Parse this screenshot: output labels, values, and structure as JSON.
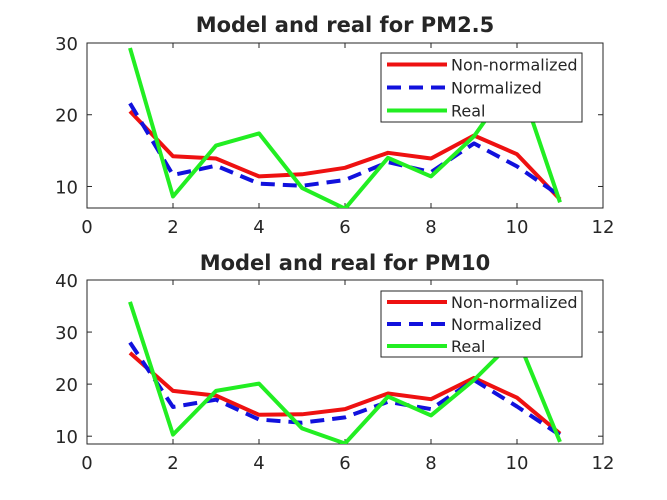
{
  "chart_data": [
    {
      "type": "line",
      "title": "Model and real for PM2.5",
      "xlabel": "",
      "ylabel": "",
      "xlim": [
        0,
        12
      ],
      "ylim": [
        7,
        30
      ],
      "xticks": [
        0,
        2,
        4,
        6,
        8,
        10,
        12
      ],
      "yticks": [
        10,
        20,
        30
      ],
      "x": [
        1,
        2,
        3,
        4,
        5,
        6,
        7,
        8,
        9,
        10,
        11
      ],
      "legend": "top-right",
      "grid": false,
      "series": [
        {
          "name": "Non-normalized",
          "color": "#ee1111",
          "dash": "solid",
          "values": [
            20.5,
            14.2,
            13.9,
            11.4,
            11.7,
            12.6,
            14.7,
            13.9,
            17.1,
            14.5,
            8.2
          ]
        },
        {
          "name": "Normalized",
          "color": "#1111dd",
          "dash": "dashed",
          "values": [
            21.6,
            11.6,
            12.9,
            10.4,
            10.1,
            10.9,
            13.4,
            12.0,
            16.0,
            12.8,
            8.7
          ]
        },
        {
          "name": "Real",
          "color": "#22ee22",
          "dash": "solid",
          "values": [
            29.3,
            8.6,
            15.7,
            17.4,
            9.8,
            6.9,
            14.0,
            11.4,
            17.0,
            25.5,
            7.8
          ]
        }
      ]
    },
    {
      "type": "line",
      "title": "Model and real for PM10",
      "xlabel": "",
      "ylabel": "",
      "xlim": [
        0,
        12
      ],
      "ylim": [
        8.5,
        40
      ],
      "xticks": [
        0,
        2,
        4,
        6,
        8,
        10,
        12
      ],
      "yticks": [
        10,
        20,
        30,
        40
      ],
      "x": [
        1,
        2,
        3,
        4,
        5,
        6,
        7,
        8,
        9,
        10,
        11
      ],
      "legend": "top-right",
      "grid": false,
      "series": [
        {
          "name": "Non-normalized",
          "color": "#ee1111",
          "dash": "solid",
          "values": [
            26.0,
            18.7,
            17.8,
            14.1,
            14.2,
            15.2,
            18.2,
            17.1,
            21.2,
            17.4,
            10.5
          ]
        },
        {
          "name": "Normalized",
          "color": "#1111dd",
          "dash": "dashed",
          "values": [
            28.0,
            15.6,
            17.0,
            13.2,
            12.6,
            13.6,
            16.6,
            15.2,
            20.8,
            15.7,
            10.2
          ]
        },
        {
          "name": "Real",
          "color": "#22ee22",
          "dash": "solid",
          "values": [
            35.8,
            10.3,
            18.7,
            20.1,
            11.5,
            8.6,
            17.6,
            14.0,
            20.8,
            29.0,
            8.9
          ]
        }
      ]
    }
  ]
}
